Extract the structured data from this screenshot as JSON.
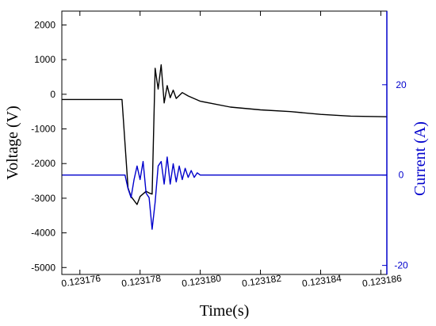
{
  "chart_data": {
    "type": "line",
    "xlabel": "Time(s)",
    "y_left_label": "Voltage (V)",
    "y_right_label": "Current (A)",
    "xlim": [
      0.1231754,
      0.1231862
    ],
    "ylim_left": [
      -5200,
      2400
    ],
    "ylim_right": [
      -22,
      36.3
    ],
    "x_ticks": [
      0.123176,
      0.123178,
      0.12318,
      0.123182,
      0.123184,
      0.123186
    ],
    "x_tick_labels": [
      "0.123176",
      "0.123178",
      "0.123180",
      "0.123182",
      "0.123184",
      "0.123186"
    ],
    "y_left_ticks": [
      2000,
      1000,
      0,
      -1000,
      -2000,
      -3000,
      -4000,
      -5000
    ],
    "y_left_tick_labels": [
      "2000",
      "1000",
      "0",
      "-1000",
      "-2000",
      "-3000",
      "-4000",
      "-5000"
    ],
    "y_right_ticks": [
      20,
      0,
      -20
    ],
    "y_right_tick_labels": [
      "20",
      "0",
      "-20"
    ],
    "grid": false,
    "colors": {
      "voltage": "#000000",
      "current": "#0000cc",
      "right_axis": "#0000cc"
    },
    "series": [
      {
        "axis": "left",
        "color": "#000000",
        "x": [
          0.1231754,
          0.123176,
          0.123177,
          0.1231774,
          0.1231776,
          0.1231777,
          0.1231779,
          0.123178,
          0.1231782,
          0.1231783,
          0.1231784,
          0.1231785,
          0.1231786,
          0.1231787,
          0.1231788,
          0.1231789,
          0.123179,
          0.1231791,
          0.1231792,
          0.1231794,
          0.1231796,
          0.12318,
          0.123181,
          0.123182,
          0.123183,
          0.123184,
          0.123185,
          0.1231862
        ],
        "y": [
          -150,
          -150,
          -150,
          -150,
          -2700,
          -2950,
          -3180,
          -2950,
          -2800,
          -2850,
          -2880,
          750,
          150,
          850,
          -250,
          250,
          -100,
          120,
          -120,
          50,
          -50,
          -200,
          -370,
          -450,
          -500,
          -580,
          -630,
          -650
        ]
      },
      {
        "axis": "right",
        "color": "#0000cc",
        "x": [
          0.1231754,
          0.123176,
          0.123177,
          0.1231775,
          0.1231776,
          0.1231777,
          0.1231778,
          0.1231779,
          0.123178,
          0.1231781,
          0.1231782,
          0.1231783,
          0.1231784,
          0.1231785,
          0.1231786,
          0.1231787,
          0.1231788,
          0.1231789,
          0.123179,
          0.1231791,
          0.1231792,
          0.1231793,
          0.1231794,
          0.1231795,
          0.1231796,
          0.1231797,
          0.1231798,
          0.1231799,
          0.12318,
          0.12318005,
          0.123181,
          0.123182,
          0.123183,
          0.123184,
          0.123185,
          0.1231862
        ],
        "y": [
          0,
          0,
          0,
          0,
          -3,
          -5,
          -1,
          2,
          -1,
          3,
          -4,
          -5,
          -12,
          -6,
          2,
          3,
          -2,
          4,
          -2,
          2.5,
          -1.5,
          2,
          -1,
          1.5,
          -0.5,
          1,
          -0.5,
          0.5,
          0,
          0,
          0,
          0,
          0,
          0,
          0,
          0
        ]
      }
    ]
  }
}
